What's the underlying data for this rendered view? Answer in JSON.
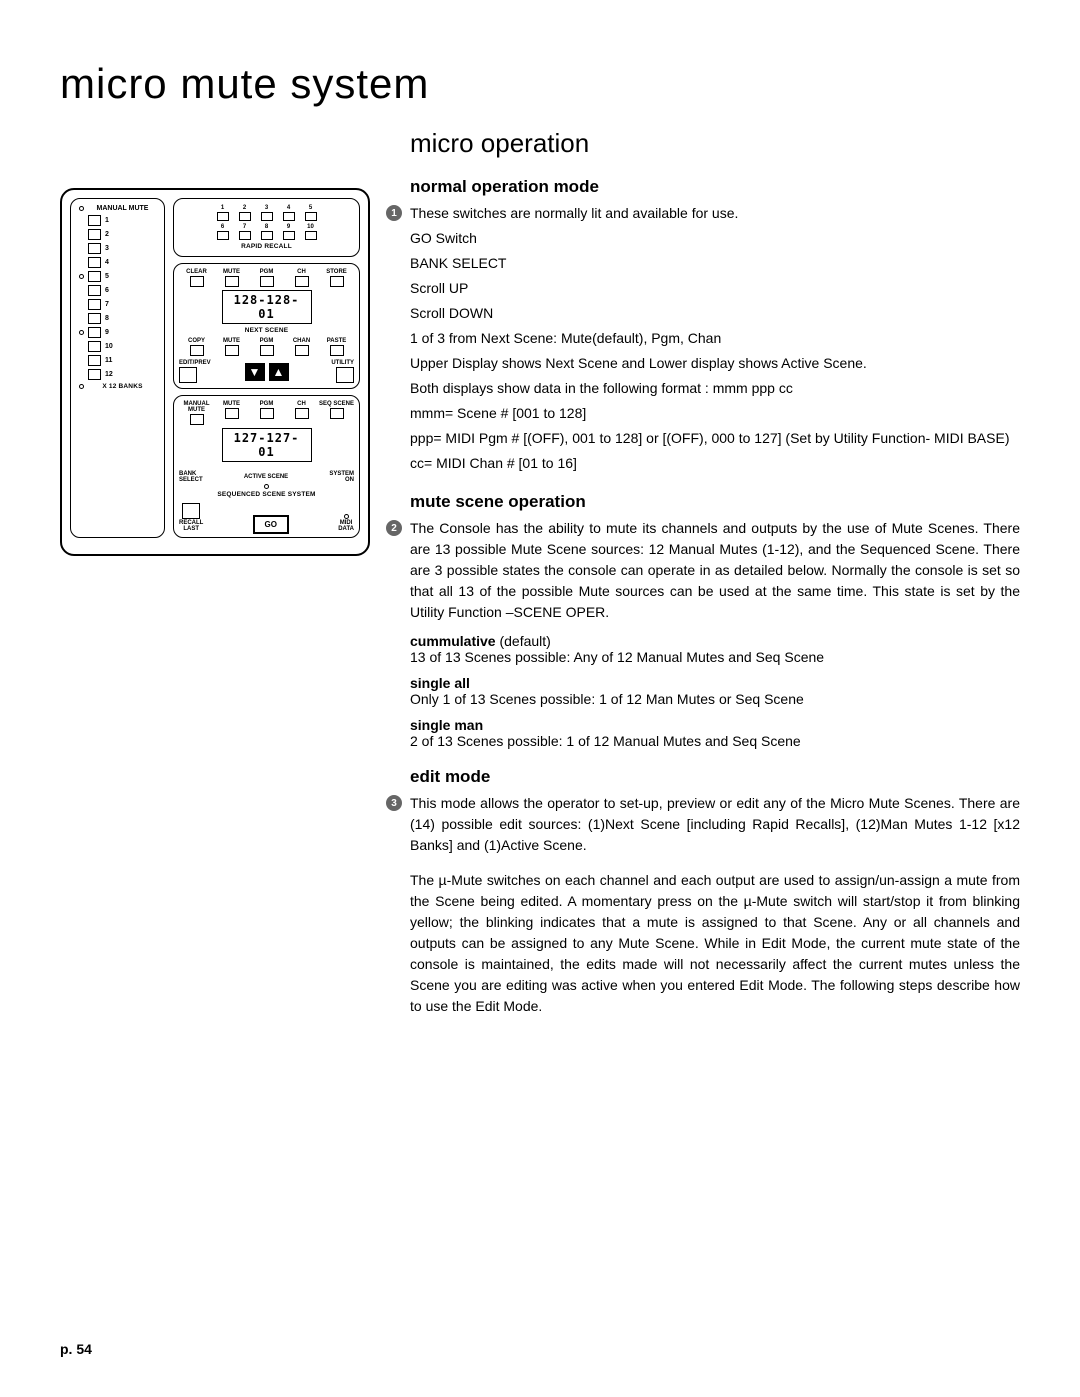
{
  "page_title": "micro mute system",
  "section_title": "micro operation",
  "page_number": "p. 54",
  "diagram": {
    "manual_mute_label": "MANUAL MUTE",
    "mute_numbers": [
      "1",
      "2",
      "3",
      "4",
      "5",
      "6",
      "7",
      "8",
      "9",
      "10",
      "11",
      "12"
    ],
    "x12_banks": "X 12 BANKS",
    "rapid_recall_label": "RAPID RECALL",
    "rapid_nums_top": [
      "1",
      "2",
      "3",
      "4",
      "5"
    ],
    "rapid_nums_bot": [
      "6",
      "7",
      "8",
      "9",
      "10"
    ],
    "row1_labels": [
      "CLEAR",
      "MUTE",
      "PGM",
      "CH",
      "STORE"
    ],
    "display1": "128-128-01",
    "next_scene_label": "NEXT SCENE",
    "row2_labels": [
      "COPY",
      "MUTE",
      "PGM",
      "CHAN",
      "PASTE"
    ],
    "edit_prev": "EDIT/PREV",
    "utility": "UTILITY",
    "row3_labels": [
      "MANUAL MUTE",
      "MUTE",
      "PGM",
      "CH",
      "SEQ SCENE"
    ],
    "display2": "127-127-01",
    "bank_select": "BANK\nSELECT",
    "active_scene": "ACTIVE SCENE",
    "system_on": "SYSTEM\nON",
    "seq_scene_label": "SEQUENCED SCENE SYSTEM",
    "recall_last": "RECALL\nLAST",
    "go": "GO",
    "midi_data": "MIDI\nDATA"
  },
  "sections": [
    {
      "num": "1",
      "title": "normal operation mode",
      "intro": "These switches are normally lit and available for use.",
      "lines": [
        "GO Switch",
        "BANK SELECT",
        "Scroll UP",
        "Scroll DOWN",
        "1 of 3 from Next Scene: Mute(default), Pgm, Chan",
        "Upper Display shows Next Scene and Lower display shows Active Scene.",
        "Both displays show data in the following format : mmm ppp cc",
        "mmm= Scene # [001 to 128]",
        "ppp= MIDI Pgm # [(OFF), 001 to 128] or [(OFF), 000 to 127] (Set by Utility Function- MIDI BASE)",
        "cc= MIDI Chan # [01 to 16]"
      ]
    },
    {
      "num": "2",
      "title": "mute scene operation",
      "intro": "The Console has the ability to mute its channels and outputs by the use of Mute Scenes. There are 13 possible Mute Scene sources: 12 Manual Mutes (1-12), and the Sequenced Scene. There are 3 possible states the console can operate in as detailed below. Normally the console is set so that all 13 of the possible Mute sources can be used at the same time. This state is set by the Utility Function –SCENE OPER.",
      "subs": [
        {
          "label_bold": "cummulative",
          "label_rest": " (default)",
          "desc": "13 of 13 Scenes possible: Any of 12 Manual Mutes and Seq Scene"
        },
        {
          "label_bold": "single all",
          "label_rest": "",
          "desc": "Only 1 of 13 Scenes possible: 1 of 12 Man Mutes or Seq Scene"
        },
        {
          "label_bold": "single man",
          "label_rest": "",
          "desc": "2 of 13 Scenes possible: 1 of 12 Manual Mutes and Seq Scene"
        }
      ]
    },
    {
      "num": "3",
      "title": "edit mode",
      "paras": [
        "This mode allows the operator to set-up, preview or edit any of the Micro Mute Scenes. There are (14) possible edit sources: (1)Next Scene [including Rapid Recalls], (12)Man Mutes 1-12 [x12 Banks] and (1)Active Scene.",
        "The µ-Mute switches on each channel and each output are used to assign/un-assign a mute from the Scene being edited. A momentary press on the µ-Mute switch will start/stop it from blinking yellow; the blinking indicates that a mute is assigned to that Scene. Any or all channels and outputs can be assigned to any Mute Scene. While in Edit Mode, the current mute state of the console is maintained, the edits made will not necessarily affect the current mutes unless the Scene you are editing was active when you entered Edit Mode. The following steps describe how to use the Edit Mode."
      ]
    }
  ]
}
